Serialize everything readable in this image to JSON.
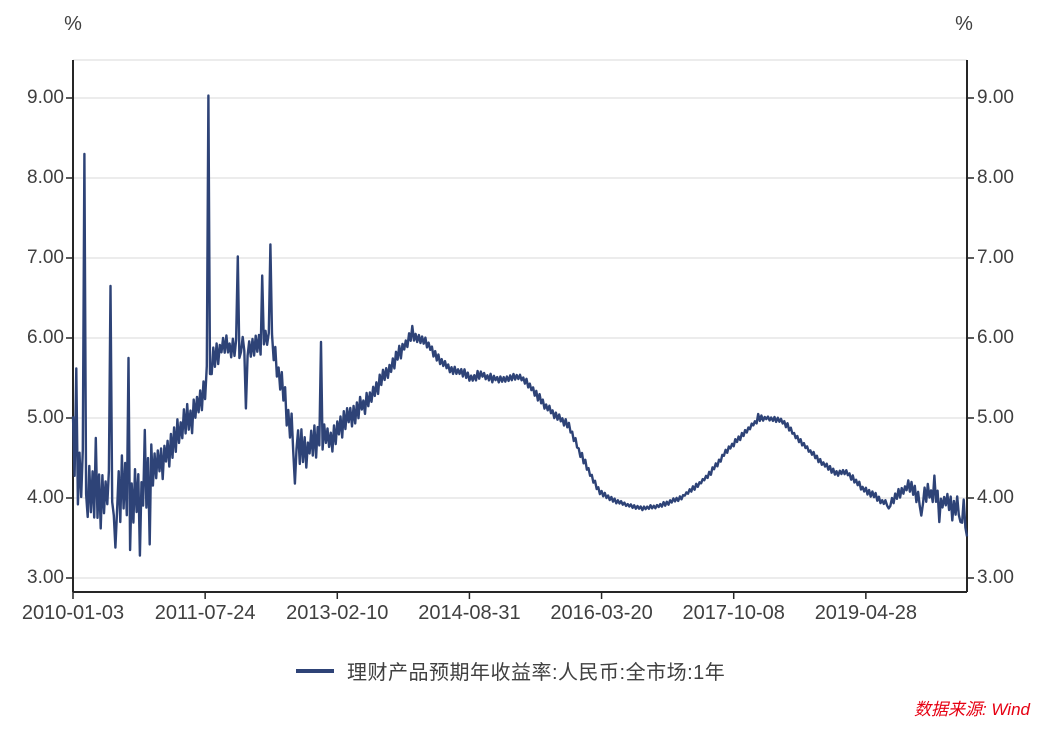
{
  "axes": {
    "left_unit": "%",
    "right_unit": "%"
  },
  "legend": {
    "marker": "line-segment"
  },
  "source_note": "数据来源: Wind",
  "colors": {
    "line": "#2E4377",
    "axis": "#262626",
    "grid": "#D9D9D9",
    "text": "#3f3f3f",
    "source_text": "#E60012"
  },
  "chart_data": {
    "type": "line",
    "title": "",
    "series_name": "理财产品预期年收益率:人民币:全市场:1年",
    "unit": "%",
    "frequency": "weekly",
    "x_start_label": "2010-01-03",
    "weeks_total": 548,
    "x_tick_weeks": [
      0,
      81,
      162,
      243,
      324,
      405,
      486
    ],
    "x_tick_labels": [
      "2010-01-03",
      "2011-07-24",
      "2013-02-10",
      "2014-08-31",
      "2016-03-20",
      "2017-10-08",
      "2019-04-28"
    ],
    "y_tick_labels": [
      "9.00",
      "8.00",
      "7.00",
      "6.00",
      "5.00",
      "4.00",
      "3.00"
    ],
    "y_gridlines": [
      3,
      4,
      5,
      6,
      7,
      8,
      9
    ],
    "ylim": [
      3.0,
      9.0
    ],
    "grid": "horizontal",
    "legend_position": "bottom-center",
    "noise_seed": 7,
    "trend_anchors": [
      [
        0,
        4.6
      ],
      [
        4,
        4.2
      ],
      [
        10,
        4.15
      ],
      [
        16,
        4.05
      ],
      [
        22,
        4.1
      ],
      [
        26,
        3.95
      ],
      [
        30,
        4.15
      ],
      [
        36,
        4.0
      ],
      [
        42,
        4.05
      ],
      [
        48,
        4.35
      ],
      [
        54,
        4.5
      ],
      [
        60,
        4.65
      ],
      [
        66,
        4.85
      ],
      [
        72,
        5.0
      ],
      [
        78,
        5.2
      ],
      [
        83,
        5.5
      ],
      [
        86,
        5.75
      ],
      [
        92,
        5.9
      ],
      [
        98,
        5.85
      ],
      [
        104,
        5.9
      ],
      [
        110,
        5.85
      ],
      [
        116,
        5.95
      ],
      [
        120,
        6.0
      ],
      [
        124,
        5.75
      ],
      [
        128,
        5.4
      ],
      [
        133,
        4.9
      ],
      [
        138,
        4.65
      ],
      [
        143,
        4.6
      ],
      [
        148,
        4.7
      ],
      [
        153,
        4.8
      ],
      [
        158,
        4.7
      ],
      [
        163,
        4.85
      ],
      [
        168,
        5.0
      ],
      [
        174,
        5.1
      ],
      [
        180,
        5.2
      ],
      [
        186,
        5.4
      ],
      [
        192,
        5.55
      ],
      [
        198,
        5.75
      ],
      [
        203,
        5.9
      ],
      [
        208,
        6.05
      ],
      [
        212,
        6.0
      ],
      [
        216,
        5.95
      ],
      [
        220,
        5.85
      ],
      [
        226,
        5.7
      ],
      [
        232,
        5.6
      ],
      [
        238,
        5.58
      ],
      [
        244,
        5.5
      ],
      [
        250,
        5.55
      ],
      [
        256,
        5.5
      ],
      [
        262,
        5.48
      ],
      [
        268,
        5.5
      ],
      [
        274,
        5.52
      ],
      [
        280,
        5.4
      ],
      [
        286,
        5.25
      ],
      [
        292,
        5.1
      ],
      [
        298,
        5.0
      ],
      [
        304,
        4.9
      ],
      [
        310,
        4.6
      ],
      [
        316,
        4.35
      ],
      [
        322,
        4.1
      ],
      [
        328,
        4.0
      ],
      [
        334,
        3.95
      ],
      [
        342,
        3.9
      ],
      [
        350,
        3.87
      ],
      [
        358,
        3.9
      ],
      [
        366,
        3.95
      ],
      [
        372,
        4.0
      ],
      [
        378,
        4.08
      ],
      [
        384,
        4.18
      ],
      [
        390,
        4.3
      ],
      [
        396,
        4.45
      ],
      [
        401,
        4.6
      ],
      [
        406,
        4.7
      ],
      [
        411,
        4.8
      ],
      [
        416,
        4.9
      ],
      [
        421,
        5.0
      ],
      [
        427,
        5.0
      ],
      [
        433,
        4.97
      ],
      [
        438,
        4.9
      ],
      [
        444,
        4.75
      ],
      [
        450,
        4.62
      ],
      [
        456,
        4.5
      ],
      [
        462,
        4.4
      ],
      [
        468,
        4.3
      ],
      [
        473,
        4.33
      ],
      [
        478,
        4.25
      ],
      [
        484,
        4.12
      ],
      [
        490,
        4.05
      ],
      [
        496,
        3.95
      ],
      [
        501,
        3.95
      ],
      [
        506,
        4.05
      ],
      [
        512,
        4.15
      ],
      [
        516,
        4.08
      ],
      [
        520,
        3.95
      ],
      [
        524,
        4.05
      ],
      [
        528,
        4.05
      ],
      [
        532,
        3.95
      ],
      [
        536,
        3.95
      ],
      [
        540,
        3.9
      ],
      [
        544,
        3.85
      ],
      [
        548,
        3.6
      ]
    ],
    "noise_amplitude": [
      [
        0,
        0.42
      ],
      [
        40,
        0.4
      ],
      [
        48,
        0.35
      ],
      [
        60,
        0.32
      ],
      [
        80,
        0.25
      ],
      [
        86,
        0.16
      ],
      [
        122,
        0.14
      ],
      [
        128,
        0.2
      ],
      [
        135,
        0.25
      ],
      [
        150,
        0.22
      ],
      [
        160,
        0.18
      ],
      [
        175,
        0.15
      ],
      [
        200,
        0.1
      ],
      [
        209,
        0.07
      ],
      [
        230,
        0.06
      ],
      [
        270,
        0.05
      ],
      [
        285,
        0.06
      ],
      [
        310,
        0.05
      ],
      [
        335,
        0.025
      ],
      [
        370,
        0.03
      ],
      [
        395,
        0.04
      ],
      [
        440,
        0.035
      ],
      [
        480,
        0.04
      ],
      [
        500,
        0.05
      ],
      [
        512,
        0.08
      ],
      [
        520,
        0.14
      ],
      [
        548,
        0.1
      ]
    ],
    "spikes": [
      [
        0,
        5.02
      ],
      [
        2,
        5.62
      ],
      [
        3,
        3.92
      ],
      [
        7,
        8.3
      ],
      [
        8,
        4.05
      ],
      [
        14,
        4.75
      ],
      [
        17,
        3.62
      ],
      [
        23,
        6.65
      ],
      [
        24,
        3.95
      ],
      [
        26,
        3.38
      ],
      [
        34,
        5.75
      ],
      [
        35,
        3.35
      ],
      [
        41,
        3.28
      ],
      [
        44,
        4.85
      ],
      [
        47,
        3.42
      ],
      [
        83,
        9.03
      ],
      [
        84,
        5.55
      ],
      [
        101,
        7.02
      ],
      [
        102,
        5.75
      ],
      [
        106,
        5.12
      ],
      [
        116,
        6.78
      ],
      [
        121,
        7.17
      ],
      [
        122,
        6.05
      ],
      [
        136,
        4.18
      ],
      [
        152,
        5.95
      ],
      [
        208,
        6.15
      ],
      [
        420,
        5.05
      ],
      [
        500,
        3.87
      ],
      [
        512,
        4.22
      ],
      [
        520,
        3.78
      ],
      [
        528,
        4.28
      ],
      [
        531,
        3.7
      ],
      [
        536,
        4.05
      ],
      [
        539,
        3.72
      ],
      [
        542,
        4.02
      ],
      [
        544,
        3.7
      ],
      [
        546,
        3.98
      ],
      [
        548,
        3.52
      ]
    ]
  }
}
